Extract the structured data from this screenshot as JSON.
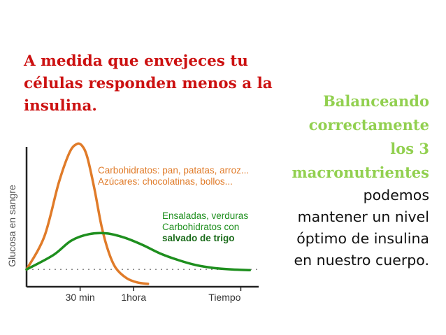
{
  "headline": {
    "lines": [
      "A medida que envejeces tu",
      "células responden menos a la",
      "insulina."
    ],
    "color": "#cc1111"
  },
  "side": {
    "highlight_lines": [
      "Balanceando",
      "correctamente",
      "los 3",
      "macronutrientes"
    ],
    "body_lines": [
      "podemos",
      "mantener un nivel",
      "óptimo de insulina",
      "en nuestro cuerpo."
    ],
    "highlight_color": "#92d050"
  },
  "chart_data": {
    "type": "line",
    "ylabel": "Glucosa en sangre",
    "xlabel": "",
    "x_ticks": [
      "30 min",
      "1hora",
      "Tiempo"
    ],
    "x_tick_values": [
      30,
      60,
      120
    ],
    "xlim": [
      0,
      130
    ],
    "ylim": [
      0,
      10
    ],
    "baseline": 1.2,
    "series": [
      {
        "label_lines": [
          "Carbohidratos: pan, patatas, arroz...",
          "Azúcares: chocolatinas, bollos..."
        ],
        "color": "#e07b29",
        "x": [
          0,
          10,
          18,
          24,
          28,
          31,
          34,
          38,
          42,
          46,
          50,
          56,
          62,
          68
        ],
        "y": [
          1.2,
          3.5,
          7.2,
          9.3,
          9.9,
          9.8,
          9.0,
          6.8,
          4.2,
          2.4,
          1.3,
          0.6,
          0.3,
          0.2
        ]
      },
      {
        "label_lines": [
          "Ensaladas, verduras",
          "Carbohidratos con",
          "salvado de trigo"
        ],
        "color": "#1e8f1e",
        "x": [
          0,
          15,
          25,
          35,
          45,
          55,
          65,
          75,
          85,
          95,
          105,
          115,
          125
        ],
        "y": [
          1.2,
          2.2,
          3.2,
          3.65,
          3.7,
          3.4,
          2.9,
          2.3,
          1.85,
          1.5,
          1.3,
          1.2,
          1.15
        ]
      }
    ]
  }
}
